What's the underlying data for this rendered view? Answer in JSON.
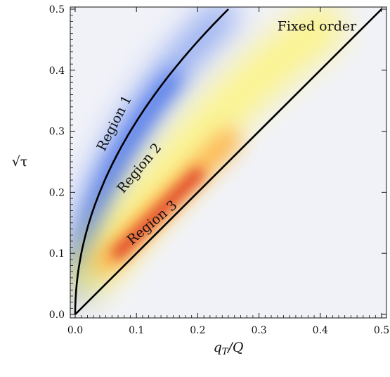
{
  "chart_data": {
    "type": "heatmap",
    "xlabel": "q_T/Q",
    "ylabel": "√τ",
    "xlim": [
      0.0,
      0.5
    ],
    "ylim": [
      0.0,
      0.5
    ],
    "x_ticks": [
      0.0,
      0.1,
      0.2,
      0.3,
      0.4,
      0.5
    ],
    "y_ticks": [
      0.0,
      0.1,
      0.2,
      0.3,
      0.4,
      0.5
    ],
    "x_tick_labels": [
      "0.0",
      "0.1",
      "0.2",
      "0.3",
      "0.4",
      "0.5"
    ],
    "y_tick_labels": [
      "0.0",
      "0.1",
      "0.2",
      "0.3",
      "0.4",
      "0.5"
    ],
    "curves": [
      {
        "shape": "sqrt",
        "x": [
          0.0,
          0.25
        ],
        "y": [
          0.0,
          0.5
        ]
      },
      {
        "shape": "line",
        "x": [
          0.0,
          0.5
        ],
        "y": [
          0.0,
          0.5
        ]
      }
    ],
    "regions": [
      {
        "label": "Region 1",
        "x": 0.07,
        "y": 0.31,
        "rotation_deg": -63
      },
      {
        "label": "Region 2",
        "x": 0.11,
        "y": 0.235,
        "rotation_deg": -50
      },
      {
        "label": "Region 3",
        "x": 0.13,
        "y": 0.145,
        "rotation_deg": -40
      }
    ],
    "annotation": {
      "label": "Fixed order",
      "x": 0.33,
      "y": 0.465
    },
    "colors": {
      "background": "#f1f2f8",
      "region1_peak": "#2f5fe8",
      "region2_3_peak": "#d8281f",
      "yellow": "#fff460",
      "curve": "#000000"
    },
    "grid": false
  }
}
